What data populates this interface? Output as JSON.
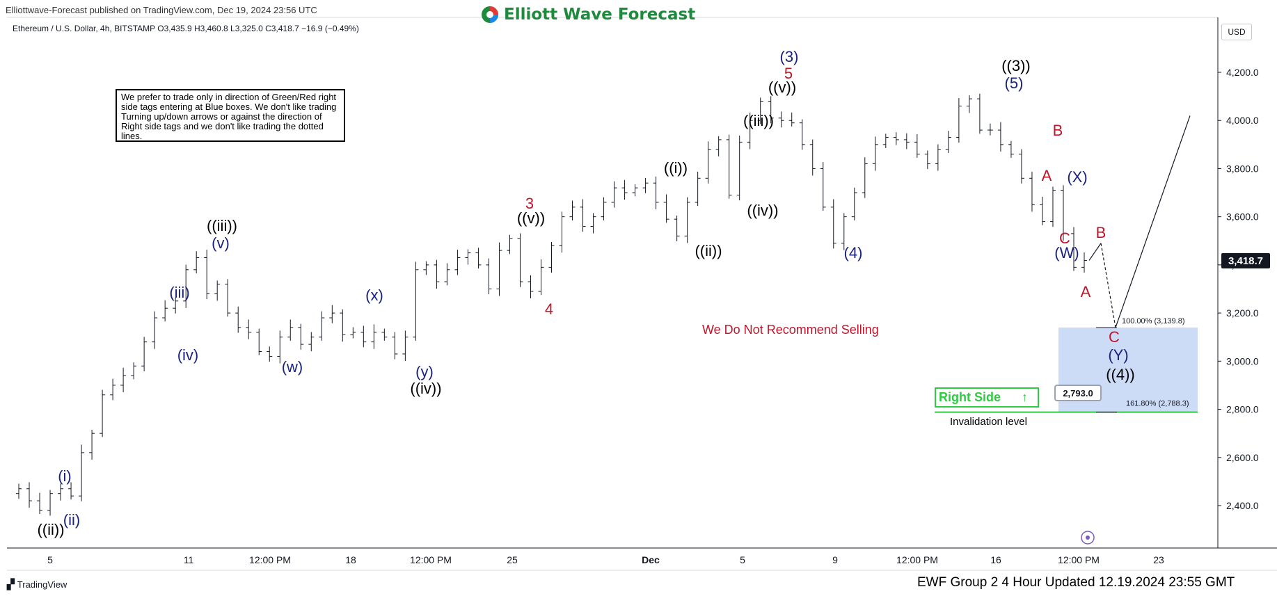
{
  "header": {
    "publisher": "Elliottwave-Forecast published on TradingView.com, Dec 19, 2024 23:56 UTC",
    "logo_text": "Elliott Wave Forecast",
    "symbol_line": "Ethereum / U.S. Dollar, 4h, BITSTAMP  O3,435.9  H3,460.8  L3,325.0  C3,418.7  −16.9 (−0.49%)"
  },
  "note": "We prefer to trade only in direction of Green/Red right side tags entering at Blue boxes. We don't like trading Turning up/down arrows or against the direction of Right side tags and we don't like trading the dotted lines.",
  "footer": {
    "tv_brand": "TradingView",
    "update_text": "EWF Group 2 4 Hour Updated 12.19.2024 23:55 GMT"
  },
  "price_scale": {
    "currency": "USD",
    "last_price": "3,418.7"
  },
  "annotations": {
    "no_sell": "We Do Not Recommend Selling",
    "right_side": "Right Side",
    "right_side_arrow": "↑",
    "invalidation_price": "2,793.0",
    "invalidation_label": "Invalidation level",
    "fib_100": "100.00% (3,139.8)",
    "fib_161": "161.80% (2,788.3)"
  },
  "colors": {
    "black": "#000000",
    "blue": "#1a237e",
    "red": "#c0152a",
    "green": "#2ecc40",
    "box": "#c7d7f5",
    "candle": "#131722"
  },
  "chart_data": {
    "type": "candlestick",
    "timeframe": "4h",
    "ylim": [
      2250,
      4400
    ],
    "y_ticks": [
      "2,400.0",
      "2,600.0",
      "2,800.0",
      "3,000.0",
      "3,200.0",
      "3,400.0",
      "3,600.0",
      "3,800.0",
      "4,000.0",
      "4,200.0"
    ],
    "x_ticks": [
      "5",
      "11",
      "12:00 PM",
      "18",
      "12:00 PM",
      "25",
      "Dec",
      "5",
      "9",
      "12:00 PM",
      "16",
      "12:00 PM",
      "23"
    ],
    "price_path": [
      2450,
      2470,
      2420,
      2380,
      2450,
      2470,
      2440,
      2620,
      2700,
      2860,
      2900,
      2940,
      2980,
      3080,
      3180,
      3220,
      3250,
      3380,
      3430,
      3280,
      3320,
      3200,
      3140,
      3120,
      3040,
      3020,
      3100,
      3140,
      3070,
      3100,
      3180,
      3200,
      3110,
      3120,
      3080,
      3120,
      3100,
      3030,
      3100,
      3380,
      3400,
      3330,
      3380,
      3430,
      3450,
      3400,
      3300,
      3460,
      3510,
      3330,
      3290,
      3390,
      3480,
      3600,
      3640,
      3560,
      3600,
      3660,
      3720,
      3700,
      3720,
      3740,
      3660,
      3590,
      3520,
      3660,
      3760,
      3880,
      3920,
      3690,
      3910,
      4000,
      4080,
      4010,
      4000,
      3990,
      3900,
      3800,
      3640,
      3490,
      3600,
      3700,
      3820,
      3900,
      3930,
      3920,
      3910,
      3860,
      3820,
      3880,
      3930,
      4060,
      4090,
      3960,
      3960,
      3900,
      3860,
      3760,
      3650,
      3580,
      3710,
      3530,
      3390,
      3418.7
    ],
    "projection": [
      3418.7,
      3490,
      3139.8,
      3139.8,
      4020
    ],
    "fib_levels": [
      {
        "label": "100.00% (3,139.8)",
        "value": 3139.8
      },
      {
        "label": "161.80% (2,788.3)",
        "value": 2788.3
      }
    ],
    "invalidation_level": 2793.0,
    "wave_labels": [
      {
        "text": "((ii))",
        "color": "black"
      },
      {
        "text": "(i)",
        "color": "blue"
      },
      {
        "text": "(ii)",
        "color": "blue"
      },
      {
        "text": "(iii)",
        "color": "blue"
      },
      {
        "text": "(iv)",
        "color": "blue"
      },
      {
        "text": "(v)",
        "color": "blue"
      },
      {
        "text": "((iii))",
        "color": "black"
      },
      {
        "text": "(w)",
        "color": "blue"
      },
      {
        "text": "(x)",
        "color": "blue"
      },
      {
        "text": "(y)",
        "color": "blue"
      },
      {
        "text": "((iv))",
        "color": "black"
      },
      {
        "text": "3",
        "color": "red"
      },
      {
        "text": "((v))",
        "color": "black"
      },
      {
        "text": "4",
        "color": "red"
      },
      {
        "text": "((i))",
        "color": "black"
      },
      {
        "text": "((ii))",
        "color": "black"
      },
      {
        "text": "((iii))",
        "color": "black"
      },
      {
        "text": "((iv))",
        "color": "black"
      },
      {
        "text": "(3)",
        "color": "blue"
      },
      {
        "text": "5",
        "color": "red"
      },
      {
        "text": "((v))",
        "color": "black"
      },
      {
        "text": "(4)",
        "color": "blue"
      },
      {
        "text": "((3))",
        "color": "black"
      },
      {
        "text": "(5)",
        "color": "blue"
      },
      {
        "text": "B",
        "color": "red"
      },
      {
        "text": "A",
        "color": "red"
      },
      {
        "text": "(X)",
        "color": "blue"
      },
      {
        "text": "C",
        "color": "red"
      },
      {
        "text": "(W)",
        "color": "blue"
      },
      {
        "text": "B",
        "color": "red"
      },
      {
        "text": "A",
        "color": "red"
      },
      {
        "text": "C",
        "color": "red"
      },
      {
        "text": "(Y)",
        "color": "blue"
      },
      {
        "text": "((4))",
        "color": "black"
      }
    ]
  }
}
